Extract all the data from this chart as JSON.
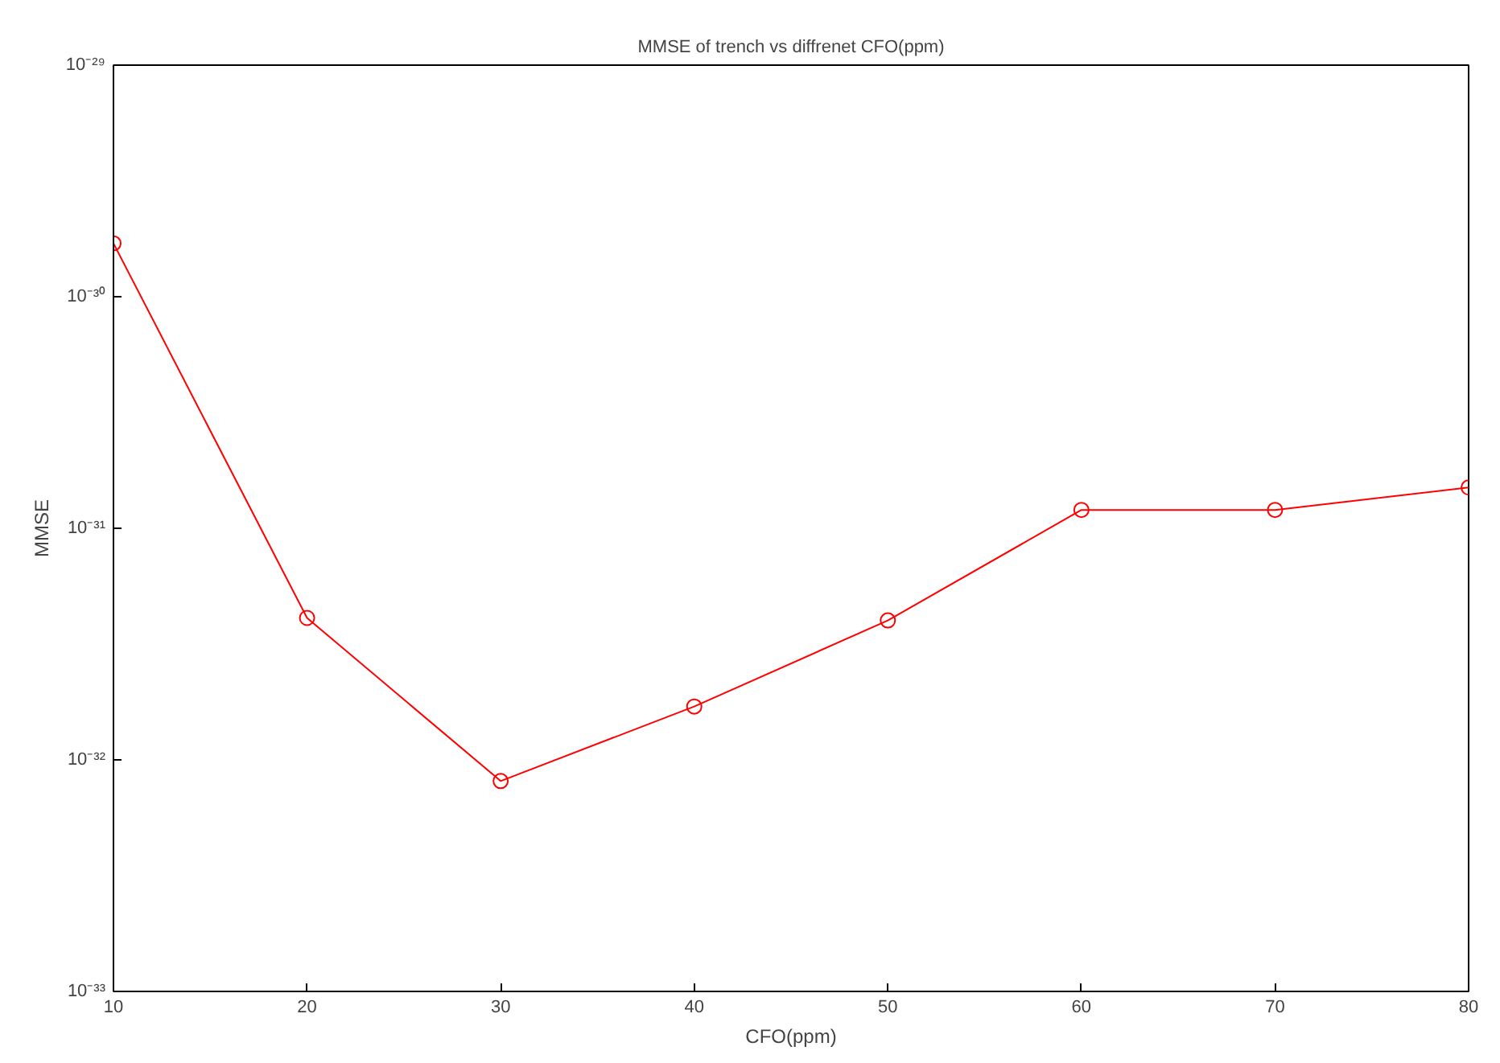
{
  "chart_data": {
    "type": "line",
    "title": "MMSE of trench vs diffrenet CFO(ppm)",
    "xlabel": "CFO(ppm)",
    "ylabel": "MMSE",
    "x": [
      10,
      20,
      30,
      40,
      50,
      60,
      70,
      80
    ],
    "series": [
      {
        "color": "#ff0000",
        "values": [
          1.7e-30,
          4.1e-32,
          8.1e-33,
          1.7e-32,
          4e-32,
          1.2e-31,
          1.2e-31,
          1.5e-31
        ]
      }
    ],
    "xlim": [
      10,
      80
    ],
    "xticks": [
      10,
      20,
      30,
      40,
      50,
      60,
      70,
      80
    ],
    "ylim": [
      1e-33,
      1e-29
    ],
    "yticks": [
      {
        "value": 1e-33,
        "label": "10⁻³³"
      },
      {
        "value": 1e-32,
        "label": "10⁻³²"
      },
      {
        "value": 1e-31,
        "label": "10⁻³¹"
      },
      {
        "value": 1e-30,
        "label": "10⁻³⁰"
      },
      {
        "value": 1e-29,
        "label": "10⁻²⁹"
      }
    ],
    "log": "y",
    "grid": false,
    "marker": "circle",
    "line_style": "solid"
  }
}
